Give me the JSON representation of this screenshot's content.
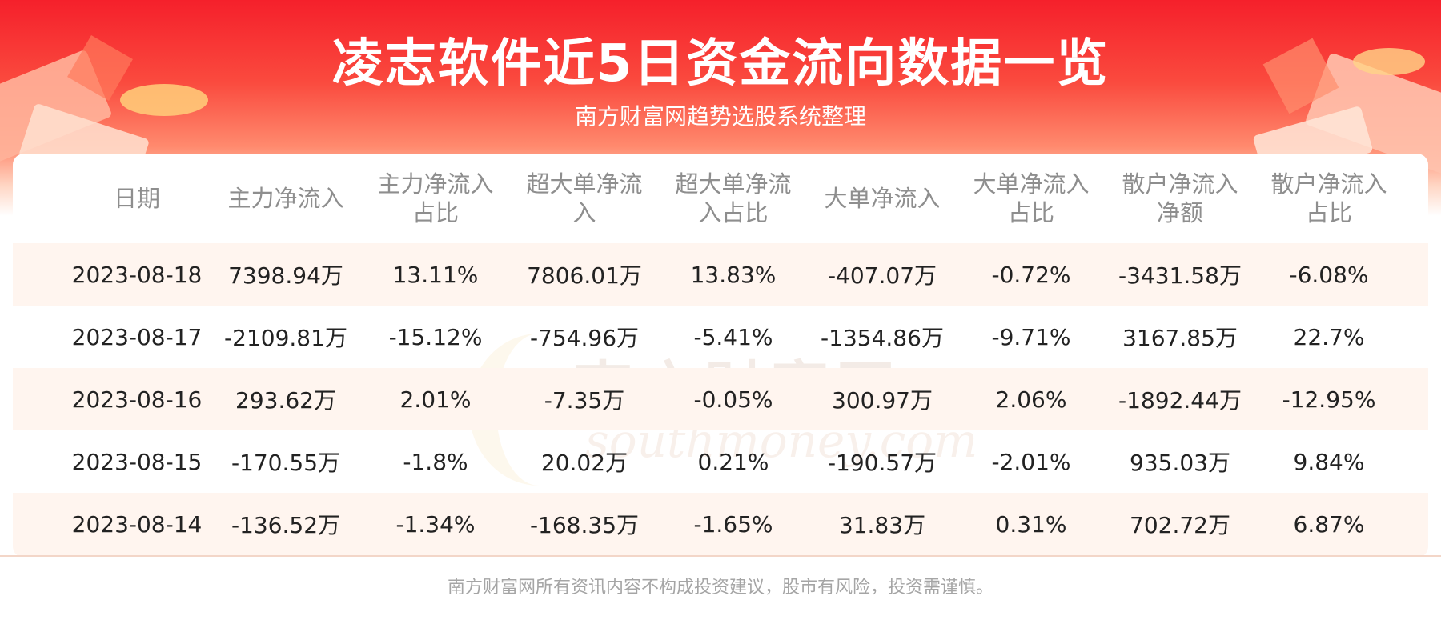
{
  "title": "凌志软件近5日资金流向数据一览",
  "subtitle": "南方财富网趋势选股系统整理",
  "watermark": {
    "cn": "南方财富网",
    "en": "southmoney.com"
  },
  "table": {
    "headers": [
      "日期",
      "主力净流入",
      "主力净流入占比",
      "超大单净流入",
      "超大单净流入占比",
      "大单净流入",
      "大单净流入占比",
      "散户净流入净额",
      "散户净流入占比"
    ],
    "rows": [
      [
        "2023-08-18",
        "7398.94万",
        "13.11%",
        "7806.01万",
        "13.83%",
        "-407.07万",
        "-0.72%",
        "-3431.58万",
        "-6.08%"
      ],
      [
        "2023-08-17",
        "-2109.81万",
        "-15.12%",
        "-754.96万",
        "-5.41%",
        "-1354.86万",
        "-9.71%",
        "3167.85万",
        "22.7%"
      ],
      [
        "2023-08-16",
        "293.62万",
        "2.01%",
        "-7.35万",
        "-0.05%",
        "300.97万",
        "2.06%",
        "-1892.44万",
        "-12.95%"
      ],
      [
        "2023-08-15",
        "-170.55万",
        "-1.8%",
        "20.02万",
        "0.21%",
        "-190.57万",
        "-2.01%",
        "935.03万",
        "9.84%"
      ],
      [
        "2023-08-14",
        "-136.52万",
        "-1.34%",
        "-168.35万",
        "-1.65%",
        "31.83万",
        "0.31%",
        "702.72万",
        "6.87%"
      ]
    ]
  },
  "footer": "南方财富网所有资讯内容不构成投资建议，股市有风险，投资需谨慎。"
}
